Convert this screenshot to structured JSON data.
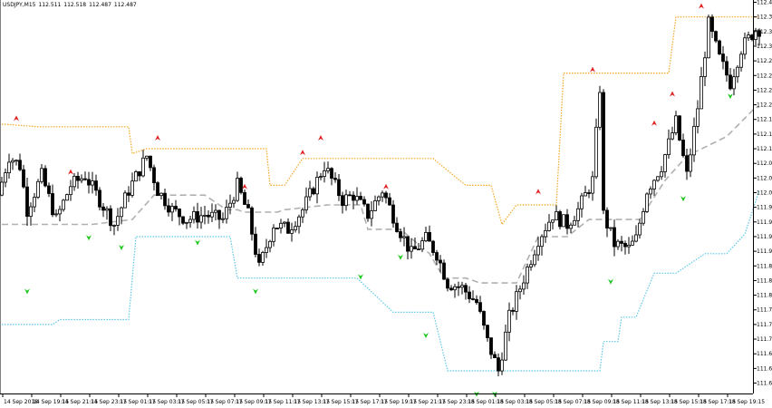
{
  "header": {
    "symbol": "USDJPY,M15",
    "open": "112.511",
    "high": "112.518",
    "low": "112.487",
    "close": "112.487"
  },
  "colors": {
    "background": "#ffffff",
    "candle_up": "#ffffff",
    "candle_down": "#000000",
    "upper_band": "#f5a623",
    "lower_band": "#5bc8e8",
    "middle_line": "#b0b0b0",
    "fractal_up": "#e02020",
    "fractal_down": "#22c722"
  },
  "chart_data": {
    "type": "candlestick",
    "y_axis_labels": [
      "112.415",
      "112.385",
      "112.355",
      "112.325",
      "112.295",
      "112.265",
      "112.235",
      "112.205",
      "112.175",
      "112.145",
      "112.115",
      "112.085",
      "112.055",
      "112.025",
      "111.995",
      "111.965",
      "111.935",
      "111.905",
      "111.875",
      "111.845",
      "111.815",
      "111.785",
      "111.755",
      "111.725",
      "111.695",
      "111.665",
      "111.635"
    ],
    "x_axis_labels": [
      "14 Sep 2018",
      "14 Sep 19:15",
      "14 Sep 21:15",
      "14 Sep 23:15",
      "17 Sep 01:15",
      "17 Sep 03:15",
      "17 Sep 05:15",
      "17 Sep 07:15",
      "17 Sep 09:15",
      "17 Sep 11:15",
      "17 Sep 13:15",
      "17 Sep 15:15",
      "17 Sep 17:15",
      "17 Sep 19:15",
      "17 Sep 21:15",
      "17 Sep 23:15",
      "18 Sep 01:15",
      "18 Sep 03:15",
      "18 Sep 05:15",
      "18 Sep 07:15",
      "18 Sep 09:15",
      "18 Sep 11:15",
      "18 Sep 13:15",
      "18 Sep 15:15",
      "18 Sep 17:15",
      "18 Sep 19:15"
    ],
    "ylim": [
      111.62,
      112.43
    ],
    "anchors": [
      [
        0,
        112.02
      ],
      [
        3,
        112.1
      ],
      [
        6,
        112.08
      ],
      [
        8,
        111.99
      ],
      [
        12,
        112.06
      ],
      [
        16,
        111.97
      ],
      [
        20,
        112.04
      ],
      [
        24,
        112.06
      ],
      [
        28,
        112.01
      ],
      [
        32,
        111.96
      ],
      [
        36,
        112.03
      ],
      [
        41,
        112.1
      ],
      [
        44,
        112.03
      ],
      [
        48,
        111.99
      ],
      [
        52,
        111.97
      ],
      [
        57,
        111.98
      ],
      [
        62,
        111.97
      ],
      [
        66,
        112.04
      ],
      [
        69,
        111.98
      ],
      [
        72,
        111.87
      ],
      [
        76,
        111.96
      ],
      [
        80,
        111.95
      ],
      [
        84,
        111.99
      ],
      [
        88,
        112.05
      ],
      [
        90,
        112.08
      ],
      [
        95,
        112.01
      ],
      [
        98,
        112.02
      ],
      [
        102,
        111.98
      ],
      [
        106,
        112.03
      ],
      [
        110,
        111.96
      ],
      [
        114,
        111.9
      ],
      [
        118,
        111.93
      ],
      [
        121,
        111.9
      ],
      [
        124,
        111.84
      ],
      [
        128,
        111.83
      ],
      [
        132,
        111.8
      ],
      [
        135,
        111.72
      ],
      [
        138,
        111.66
      ],
      [
        141,
        111.77
      ],
      [
        145,
        111.85
      ],
      [
        149,
        111.93
      ],
      [
        153,
        111.98
      ],
      [
        157,
        111.96
      ],
      [
        160,
        111.99
      ],
      [
        164,
        112.05
      ],
      [
        166,
        112.24
      ],
      [
        167,
        111.98
      ],
      [
        170,
        111.92
      ],
      [
        174,
        111.91
      ],
      [
        176,
        111.93
      ],
      [
        179,
        112.03
      ],
      [
        183,
        112.08
      ],
      [
        187,
        112.17
      ],
      [
        190,
        112.06
      ],
      [
        193,
        112.2
      ],
      [
        196,
        112.37
      ],
      [
        199,
        112.3
      ],
      [
        202,
        112.25
      ],
      [
        205,
        112.32
      ],
      [
        209,
        112.36
      ]
    ],
    "upper_band_anchors": [
      [
        0,
        112.165
      ],
      [
        1,
        112.165
      ],
      [
        10,
        112.16
      ],
      [
        35,
        112.16
      ],
      [
        36,
        112.105
      ],
      [
        40,
        112.115
      ],
      [
        73,
        112.115
      ],
      [
        74,
        112.04
      ],
      [
        78,
        112.04
      ],
      [
        83,
        112.095
      ],
      [
        119,
        112.095
      ],
      [
        128,
        112.04
      ],
      [
        135,
        112.04
      ],
      [
        138,
        111.96
      ],
      [
        142,
        112
      ],
      [
        153,
        112
      ],
      [
        155,
        112.27
      ],
      [
        184,
        112.27
      ],
      [
        186,
        112.385
      ],
      [
        209,
        112.385
      ]
    ],
    "lower_band_anchors": [
      [
        0,
        111.755
      ],
      [
        14,
        111.755
      ],
      [
        16,
        111.765
      ],
      [
        35,
        111.765
      ],
      [
        37,
        111.935
      ],
      [
        63,
        111.935
      ],
      [
        65,
        111.85
      ],
      [
        98,
        111.85
      ],
      [
        108,
        111.78
      ],
      [
        119,
        111.78
      ],
      [
        123,
        111.66
      ],
      [
        165,
        111.66
      ],
      [
        166,
        111.72
      ],
      [
        170,
        111.72
      ],
      [
        171,
        111.77
      ],
      [
        175,
        111.77
      ],
      [
        180,
        111.86
      ],
      [
        186,
        111.86
      ],
      [
        194,
        111.9
      ],
      [
        200,
        111.9
      ],
      [
        205,
        111.94
      ],
      [
        209,
        112.03
      ]
    ],
    "middle_line_anchors": [
      [
        0,
        111.96
      ],
      [
        14,
        111.96
      ],
      [
        25,
        111.96
      ],
      [
        36,
        111.97
      ],
      [
        42,
        112.02
      ],
      [
        56,
        112.02
      ],
      [
        62,
        111.99
      ],
      [
        65,
        111.99
      ],
      [
        67,
        111.985
      ],
      [
        76,
        111.985
      ],
      [
        78,
        111.99
      ],
      [
        90,
        112
      ],
      [
        99,
        112
      ],
      [
        101,
        111.95
      ],
      [
        110,
        111.95
      ],
      [
        118,
        111.9
      ],
      [
        122,
        111.85
      ],
      [
        128,
        111.85
      ],
      [
        132,
        111.84
      ],
      [
        142,
        111.84
      ],
      [
        148,
        111.935
      ],
      [
        156,
        111.935
      ],
      [
        162,
        111.97
      ],
      [
        170,
        111.97
      ],
      [
        176,
        111.97
      ],
      [
        183,
        112.05
      ],
      [
        189,
        112.1
      ],
      [
        200,
        112.14
      ],
      [
        208,
        112.2
      ]
    ],
    "fractals_up": [
      [
        4,
        112.17
      ],
      [
        19,
        112.06
      ],
      [
        43,
        112.13
      ],
      [
        67,
        112.03
      ],
      [
        83,
        112.1
      ],
      [
        88,
        112.13
      ],
      [
        106,
        112.03
      ],
      [
        148,
        112.02
      ],
      [
        163,
        112.27
      ],
      [
        180,
        112.16
      ],
      [
        185,
        112.22
      ],
      [
        193,
        112.4
      ]
    ],
    "fractals_down": [
      [
        7,
        111.83
      ],
      [
        24,
        111.94
      ],
      [
        33,
        111.92
      ],
      [
        54,
        111.93
      ],
      [
        70,
        111.83
      ],
      [
        99,
        111.86
      ],
      [
        110,
        111.9
      ],
      [
        117,
        111.74
      ],
      [
        131,
        111.62
      ],
      [
        136,
        111.62
      ],
      [
        168,
        111.85
      ],
      [
        188,
        112.02
      ],
      [
        201,
        112.23
      ]
    ]
  }
}
